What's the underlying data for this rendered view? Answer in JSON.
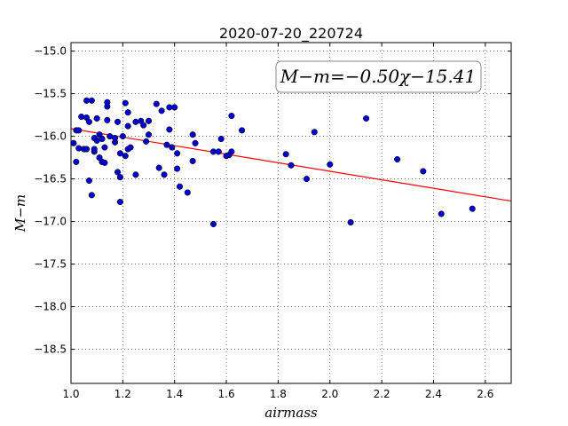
{
  "chart_data": {
    "type": "scatter",
    "title": "2020-07-20_220724",
    "xlabel": "airmass",
    "ylabel": "M−m",
    "xlim": [
      1.0,
      2.7
    ],
    "ylim": [
      -18.9,
      -14.9
    ],
    "y_inverted": true,
    "grid": true,
    "grid_style": "dotted",
    "xticks": [
      "1.0",
      "1.2",
      "1.4",
      "1.6",
      "1.8",
      "2.0",
      "2.2",
      "2.4",
      "2.6"
    ],
    "yticks": [
      "−15.0",
      "−15.5",
      "−16.0",
      "−16.5",
      "−17.0",
      "−17.5",
      "−18.0",
      "−18.5"
    ],
    "annotation": "M−m=−0.50χ−15.41",
    "fit": {
      "slope": -0.5,
      "intercept": -15.41,
      "color": "#ff0000"
    },
    "point_color": "#0000cc",
    "points": [
      [
        1.01,
        -16.08
      ],
      [
        1.02,
        -15.93
      ],
      [
        1.02,
        -16.3
      ],
      [
        1.03,
        -16.14
      ],
      [
        1.03,
        -15.93
      ],
      [
        1.04,
        -15.77
      ],
      [
        1.05,
        -16.15
      ],
      [
        1.06,
        -15.78
      ],
      [
        1.06,
        -15.58
      ],
      [
        1.06,
        -16.15
      ],
      [
        1.07,
        -16.52
      ],
      [
        1.07,
        -15.83
      ],
      [
        1.08,
        -16.69
      ],
      [
        1.08,
        -15.58
      ],
      [
        1.09,
        -16.02
      ],
      [
        1.09,
        -16.18
      ],
      [
        1.09,
        -16.15
      ],
      [
        1.1,
        -15.79
      ],
      [
        1.1,
        -16.05
      ],
      [
        1.11,
        -15.98
      ],
      [
        1.11,
        -16.25
      ],
      [
        1.12,
        -16.3
      ],
      [
        1.12,
        -16.03
      ],
      [
        1.13,
        -16.31
      ],
      [
        1.13,
        -16.13
      ],
      [
        1.14,
        -15.6
      ],
      [
        1.14,
        -15.65
      ],
      [
        1.14,
        -15.81
      ],
      [
        1.15,
        -16.0
      ],
      [
        1.17,
        -16.07
      ],
      [
        1.17,
        -16.02
      ],
      [
        1.18,
        -15.83
      ],
      [
        1.18,
        -16.42
      ],
      [
        1.19,
        -16.48
      ],
      [
        1.19,
        -16.77
      ],
      [
        1.19,
        -16.2
      ],
      [
        1.2,
        -16.0
      ],
      [
        1.21,
        -16.23
      ],
      [
        1.21,
        -15.61
      ],
      [
        1.22,
        -15.72
      ],
      [
        1.22,
        -15.88
      ],
      [
        1.22,
        -16.15
      ],
      [
        1.23,
        -16.13
      ],
      [
        1.25,
        -16.45
      ],
      [
        1.25,
        -15.83
      ],
      [
        1.27,
        -15.82
      ],
      [
        1.28,
        -15.87
      ],
      [
        1.29,
        -16.06
      ],
      [
        1.3,
        -15.82
      ],
      [
        1.3,
        -15.98
      ],
      [
        1.33,
        -15.62
      ],
      [
        1.34,
        -16.37
      ],
      [
        1.35,
        -15.7
      ],
      [
        1.36,
        -16.45
      ],
      [
        1.37,
        -16.1
      ],
      [
        1.38,
        -15.92
      ],
      [
        1.38,
        -15.66
      ],
      [
        1.39,
        -16.13
      ],
      [
        1.4,
        -15.66
      ],
      [
        1.41,
        -16.2
      ],
      [
        1.41,
        -16.38
      ],
      [
        1.42,
        -16.59
      ],
      [
        1.45,
        -16.66
      ],
      [
        1.47,
        -15.98
      ],
      [
        1.47,
        -16.29
      ],
      [
        1.48,
        -16.08
      ],
      [
        1.55,
        -17.03
      ],
      [
        1.55,
        -16.18
      ],
      [
        1.57,
        -16.18
      ],
      [
        1.58,
        -16.03
      ],
      [
        1.6,
        -16.23
      ],
      [
        1.61,
        -16.22
      ],
      [
        1.62,
        -15.76
      ],
      [
        1.62,
        -16.18
      ],
      [
        1.66,
        -15.93
      ],
      [
        1.83,
        -16.21
      ],
      [
        1.85,
        -16.34
      ],
      [
        1.91,
        -16.5
      ],
      [
        1.94,
        -15.95
      ],
      [
        2.0,
        -16.33
      ],
      [
        2.08,
        -17.01
      ],
      [
        2.14,
        -15.79
      ],
      [
        2.26,
        -16.27
      ],
      [
        2.36,
        -16.41
      ],
      [
        2.43,
        -16.91
      ],
      [
        2.55,
        -16.85
      ]
    ]
  }
}
